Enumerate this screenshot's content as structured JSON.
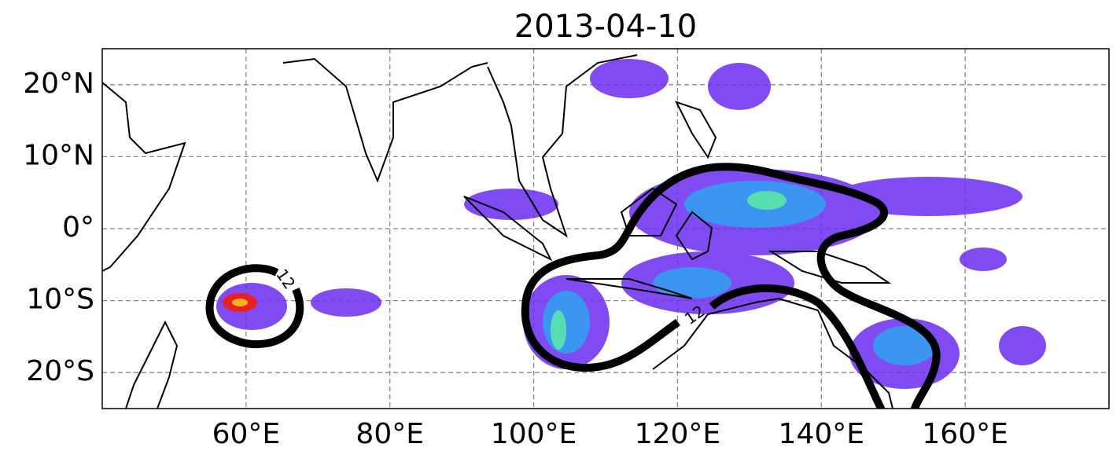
{
  "chart_data": {
    "type": "map",
    "title": "2013-04-10",
    "xlim": [
      40,
      180
    ],
    "ylim": [
      -25,
      25
    ],
    "xticks": [
      {
        "value": 60,
        "label": "60°E"
      },
      {
        "value": 80,
        "label": "80°E"
      },
      {
        "value": 100,
        "label": "100°E"
      },
      {
        "value": 120,
        "label": "120°E"
      },
      {
        "value": 140,
        "label": "140°E"
      },
      {
        "value": 160,
        "label": "160°E"
      }
    ],
    "yticks": [
      {
        "value": 20,
        "label": "20°N"
      },
      {
        "value": 10,
        "label": "10°N"
      },
      {
        "value": 0,
        "label": "0°"
      },
      {
        "value": -10,
        "label": "10°S"
      },
      {
        "value": -20,
        "label": "20°S"
      }
    ],
    "grid": true,
    "contour_labels": [
      12,
      12
    ]
  }
}
